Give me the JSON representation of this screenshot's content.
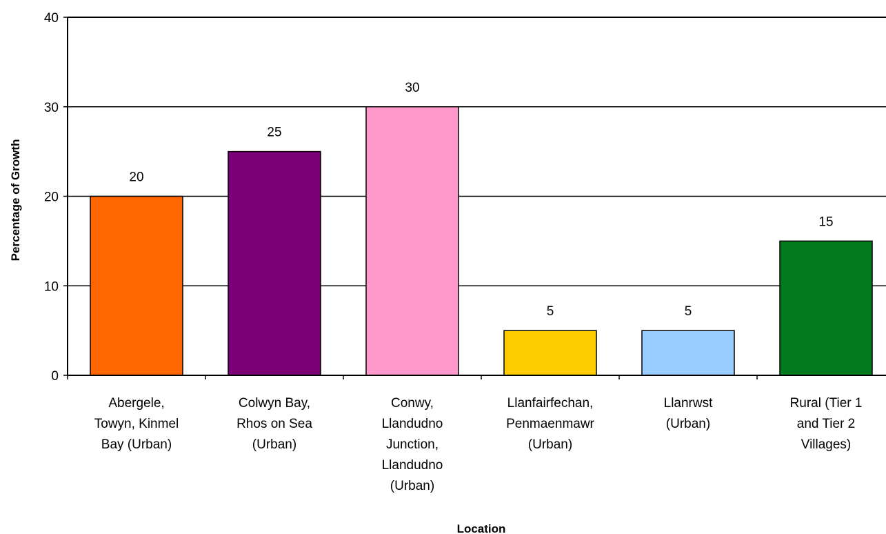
{
  "chart_data": {
    "type": "bar",
    "title": "",
    "xlabel": "Location",
    "ylabel": "Percentage of Growth",
    "ylim": [
      0,
      40
    ],
    "yticks": [
      0,
      10,
      20,
      30,
      40
    ],
    "grid": true,
    "legend": "none",
    "categories": [
      [
        "Abergele,",
        "Towyn, Kinmel",
        "Bay (Urban)"
      ],
      [
        "Colwyn Bay,",
        "Rhos on Sea",
        "(Urban)"
      ],
      [
        "Conwy,",
        "Llandudno",
        "Junction,",
        "Llandudno",
        "(Urban)"
      ],
      [
        "Llanfairfechan,",
        "Penmaenmawr",
        "(Urban)"
      ],
      [
        "Llanrwst",
        "(Urban)"
      ],
      [
        "Rural (Tier 1",
        "and Tier 2",
        "Villages)"
      ]
    ],
    "values": [
      20,
      25,
      30,
      5,
      5,
      15
    ],
    "bar_colors": [
      "#FF6600",
      "#7B0077",
      "#FF99CC",
      "#FFCC00",
      "#99CCFF",
      "#007A1C"
    ]
  }
}
